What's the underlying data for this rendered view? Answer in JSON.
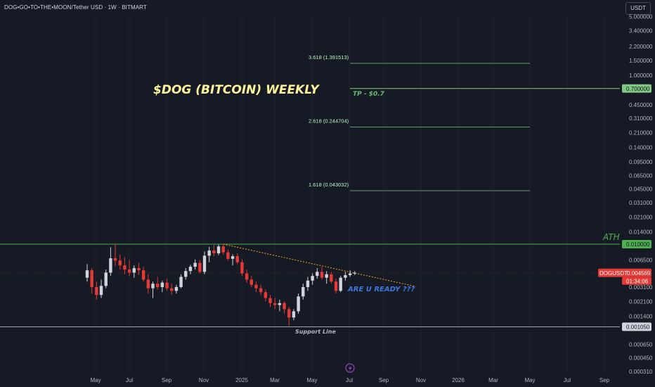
{
  "header": {
    "symbol_title": "DOG•GO•TO•THE•MOON/Tether USD · 1W · BITMART",
    "currency": "USDT"
  },
  "chart_data": {
    "type": "candlestick",
    "scale": "log",
    "price_axis_ticks": [
      5.0,
      3.4,
      2.2,
      1.5,
      1.0,
      0.45,
      0.31,
      0.21,
      0.14,
      0.095,
      0.065,
      0.045,
      0.031,
      0.021,
      0.014,
      0.0065,
      0.0031,
      0.0021,
      0.0014,
      0.00065,
      0.00045,
      0.00031
    ],
    "price_axis_tick_labels": [
      "5.000000",
      "3.400000",
      "2.200000",
      "1.500000",
      "1.000000",
      "0.450000",
      "0.310000",
      "0.210000",
      "0.140000",
      "0.095000",
      "0.065000",
      "0.045000",
      "0.031000",
      "0.021000",
      "0.014000",
      "0.006500",
      "0.003100",
      "0.002100",
      "0.001400",
      "0.000650",
      "0.000450",
      "0.000310"
    ],
    "time_axis_labels": [
      "May",
      "Jul",
      "Sep",
      "Nov",
      "2025",
      "Mar",
      "May",
      "Jul",
      "Sep",
      "Nov",
      "2026",
      "Mar",
      "May",
      "Jul",
      "Sep"
    ],
    "candles": [
      {
        "o": 0.004,
        "h": 0.0058,
        "l": 0.0036,
        "c": 0.0049
      },
      {
        "o": 0.0049,
        "h": 0.0052,
        "l": 0.0026,
        "c": 0.0031
      },
      {
        "o": 0.0031,
        "h": 0.0036,
        "l": 0.0022,
        "c": 0.0025
      },
      {
        "o": 0.0025,
        "h": 0.0038,
        "l": 0.0023,
        "c": 0.0032
      },
      {
        "o": 0.0032,
        "h": 0.005,
        "l": 0.003,
        "c": 0.0046
      },
      {
        "o": 0.0046,
        "h": 0.0092,
        "l": 0.0042,
        "c": 0.0068
      },
      {
        "o": 0.0068,
        "h": 0.01,
        "l": 0.0055,
        "c": 0.0064
      },
      {
        "o": 0.0064,
        "h": 0.0075,
        "l": 0.005,
        "c": 0.0056
      },
      {
        "o": 0.0056,
        "h": 0.007,
        "l": 0.0044,
        "c": 0.005
      },
      {
        "o": 0.005,
        "h": 0.0065,
        "l": 0.0042,
        "c": 0.0046
      },
      {
        "o": 0.0046,
        "h": 0.0056,
        "l": 0.004,
        "c": 0.0052
      },
      {
        "o": 0.0052,
        "h": 0.006,
        "l": 0.0043,
        "c": 0.0049
      },
      {
        "o": 0.0049,
        "h": 0.0054,
        "l": 0.0036,
        "c": 0.0038
      },
      {
        "o": 0.0038,
        "h": 0.0044,
        "l": 0.0026,
        "c": 0.003
      },
      {
        "o": 0.003,
        "h": 0.0036,
        "l": 0.0023,
        "c": 0.0034
      },
      {
        "o": 0.0034,
        "h": 0.0041,
        "l": 0.0029,
        "c": 0.0031
      },
      {
        "o": 0.0031,
        "h": 0.0037,
        "l": 0.0027,
        "c": 0.0035
      },
      {
        "o": 0.0035,
        "h": 0.0039,
        "l": 0.0028,
        "c": 0.003
      },
      {
        "o": 0.003,
        "h": 0.0034,
        "l": 0.0025,
        "c": 0.0028
      },
      {
        "o": 0.0028,
        "h": 0.0033,
        "l": 0.0026,
        "c": 0.0031
      },
      {
        "o": 0.0031,
        "h": 0.0044,
        "l": 0.003,
        "c": 0.0041
      },
      {
        "o": 0.0041,
        "h": 0.0052,
        "l": 0.0038,
        "c": 0.0048
      },
      {
        "o": 0.0048,
        "h": 0.0057,
        "l": 0.0044,
        "c": 0.0054
      },
      {
        "o": 0.0054,
        "h": 0.0066,
        "l": 0.005,
        "c": 0.006
      },
      {
        "o": 0.006,
        "h": 0.0065,
        "l": 0.0045,
        "c": 0.0047
      },
      {
        "o": 0.0047,
        "h": 0.0082,
        "l": 0.0044,
        "c": 0.0073
      },
      {
        "o": 0.0073,
        "h": 0.0093,
        "l": 0.0061,
        "c": 0.0084
      },
      {
        "o": 0.0084,
        "h": 0.0098,
        "l": 0.0072,
        "c": 0.0078
      },
      {
        "o": 0.0078,
        "h": 0.0099,
        "l": 0.0074,
        "c": 0.0094
      },
      {
        "o": 0.0094,
        "h": 0.01,
        "l": 0.0075,
        "c": 0.008
      },
      {
        "o": 0.008,
        "h": 0.0086,
        "l": 0.0064,
        "c": 0.0067
      },
      {
        "o": 0.0067,
        "h": 0.0076,
        "l": 0.0056,
        "c": 0.0072
      },
      {
        "o": 0.0072,
        "h": 0.0078,
        "l": 0.0058,
        "c": 0.0061
      },
      {
        "o": 0.0061,
        "h": 0.0066,
        "l": 0.0042,
        "c": 0.0045
      },
      {
        "o": 0.0045,
        "h": 0.005,
        "l": 0.0035,
        "c": 0.0038
      },
      {
        "o": 0.0038,
        "h": 0.0042,
        "l": 0.0031,
        "c": 0.0033
      },
      {
        "o": 0.0033,
        "h": 0.0036,
        "l": 0.0027,
        "c": 0.003
      },
      {
        "o": 0.003,
        "h": 0.0033,
        "l": 0.0025,
        "c": 0.0027
      },
      {
        "o": 0.0027,
        "h": 0.0029,
        "l": 0.0021,
        "c": 0.0023
      },
      {
        "o": 0.0023,
        "h": 0.0025,
        "l": 0.0018,
        "c": 0.002
      },
      {
        "o": 0.002,
        "h": 0.0023,
        "l": 0.0017,
        "c": 0.0019
      },
      {
        "o": 0.0019,
        "h": 0.0022,
        "l": 0.0016,
        "c": 0.002
      },
      {
        "o": 0.002,
        "h": 0.0021,
        "l": 0.0015,
        "c": 0.0017
      },
      {
        "o": 0.0017,
        "h": 0.0018,
        "l": 0.00108,
        "c": 0.00135
      },
      {
        "o": 0.00135,
        "h": 0.0017,
        "l": 0.00125,
        "c": 0.0016
      },
      {
        "o": 0.0016,
        "h": 0.0026,
        "l": 0.0015,
        "c": 0.0024
      },
      {
        "o": 0.0024,
        "h": 0.0034,
        "l": 0.0022,
        "c": 0.0031
      },
      {
        "o": 0.0031,
        "h": 0.0041,
        "l": 0.0028,
        "c": 0.0037
      },
      {
        "o": 0.0037,
        "h": 0.0045,
        "l": 0.0033,
        "c": 0.0042
      },
      {
        "o": 0.0042,
        "h": 0.0052,
        "l": 0.0039,
        "c": 0.0047
      },
      {
        "o": 0.0047,
        "h": 0.0054,
        "l": 0.0038,
        "c": 0.004
      },
      {
        "o": 0.004,
        "h": 0.0048,
        "l": 0.0034,
        "c": 0.0044
      },
      {
        "o": 0.0044,
        "h": 0.0047,
        "l": 0.0034,
        "c": 0.0036
      },
      {
        "o": 0.0036,
        "h": 0.0039,
        "l": 0.0026,
        "c": 0.0028
      },
      {
        "o": 0.0028,
        "h": 0.0042,
        "l": 0.0027,
        "c": 0.004
      },
      {
        "o": 0.004,
        "h": 0.0047,
        "l": 0.0037,
        "c": 0.0043
      },
      {
        "o": 0.0043,
        "h": 0.0049,
        "l": 0.0041,
        "c": 0.0045
      },
      {
        "o": 0.0045,
        "h": 0.0048,
        "l": 0.0043,
        "c": 0.004569
      }
    ],
    "horizontal_levels": [
      {
        "name": "ath",
        "price": 0.01,
        "color": "#4caf50",
        "label": "0.010000"
      },
      {
        "name": "tp",
        "price": 0.7,
        "color": "#81c784",
        "label": "0.700000"
      },
      {
        "name": "support",
        "price": 0.00105,
        "color": "#d1d4dc",
        "label": "0.001050"
      }
    ],
    "fib_levels": [
      {
        "label": "3.618 (1.391513)",
        "price": 1.391513
      },
      {
        "label": "2.618 (0.244704)",
        "price": 0.244704
      },
      {
        "label": "1.618 (0.043032)",
        "price": 0.043032
      }
    ],
    "trendline": {
      "from_candle": 29,
      "from_price": 0.01,
      "to_week": 70,
      "to_price": 0.00315,
      "color": "#f5a623"
    },
    "current_price": {
      "symbol": "DOGUSDT",
      "price_label": "0.004569",
      "countdown": "01:34:06",
      "color": "#e53935"
    }
  },
  "annotations": {
    "title": "$DOG (BITCOIN) WEEKLY",
    "tp_note": "TP - $0.7",
    "ath_note": "ATH",
    "ready_note": "ARE U READY ???",
    "support_note": "Support Line"
  },
  "colors": {
    "background": "#161a25",
    "up_candle": "#d1d4dc",
    "down_candle": "#e53935",
    "grid": "#1e222d"
  }
}
